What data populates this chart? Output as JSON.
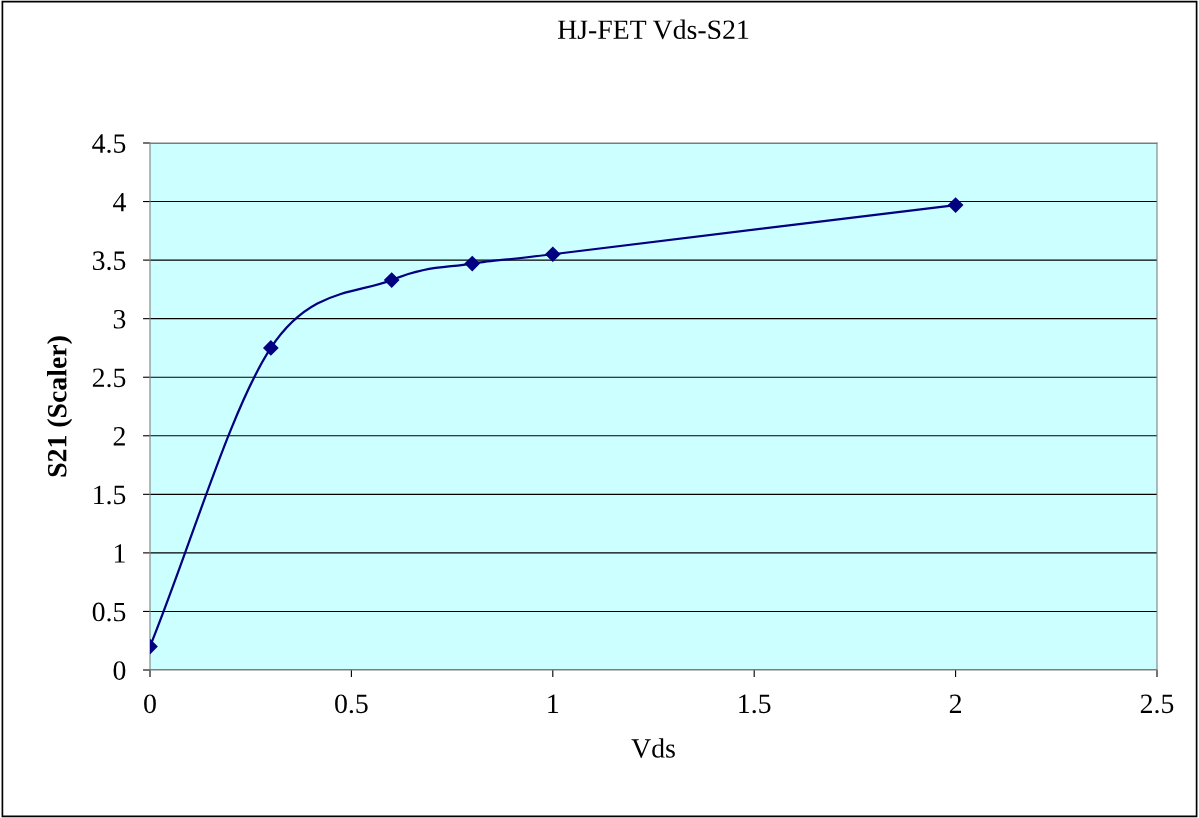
{
  "chart_data": {
    "type": "line",
    "title": "HJ-FET Vds-S21",
    "xlabel": "Vds",
    "ylabel": "S21 (Scaler)",
    "x": [
      0,
      0.3,
      0.6,
      0.8,
      1,
      2
    ],
    "series": [
      {
        "color": "#000080",
        "values": [
          0.2,
          2.75,
          3.33,
          3.47,
          3.55,
          3.97
        ]
      }
    ],
    "xlim": [
      0,
      2.5
    ],
    "xticks": [
      0,
      0.5,
      1,
      1.5,
      2,
      2.5
    ],
    "ylim": [
      0,
      4.5
    ],
    "yticks": [
      0,
      0.5,
      1,
      1.5,
      2,
      2.5,
      3,
      3.5,
      4,
      4.5
    ],
    "grid": "y",
    "marker": "diamond",
    "line_style": "solid",
    "legend": false
  }
}
